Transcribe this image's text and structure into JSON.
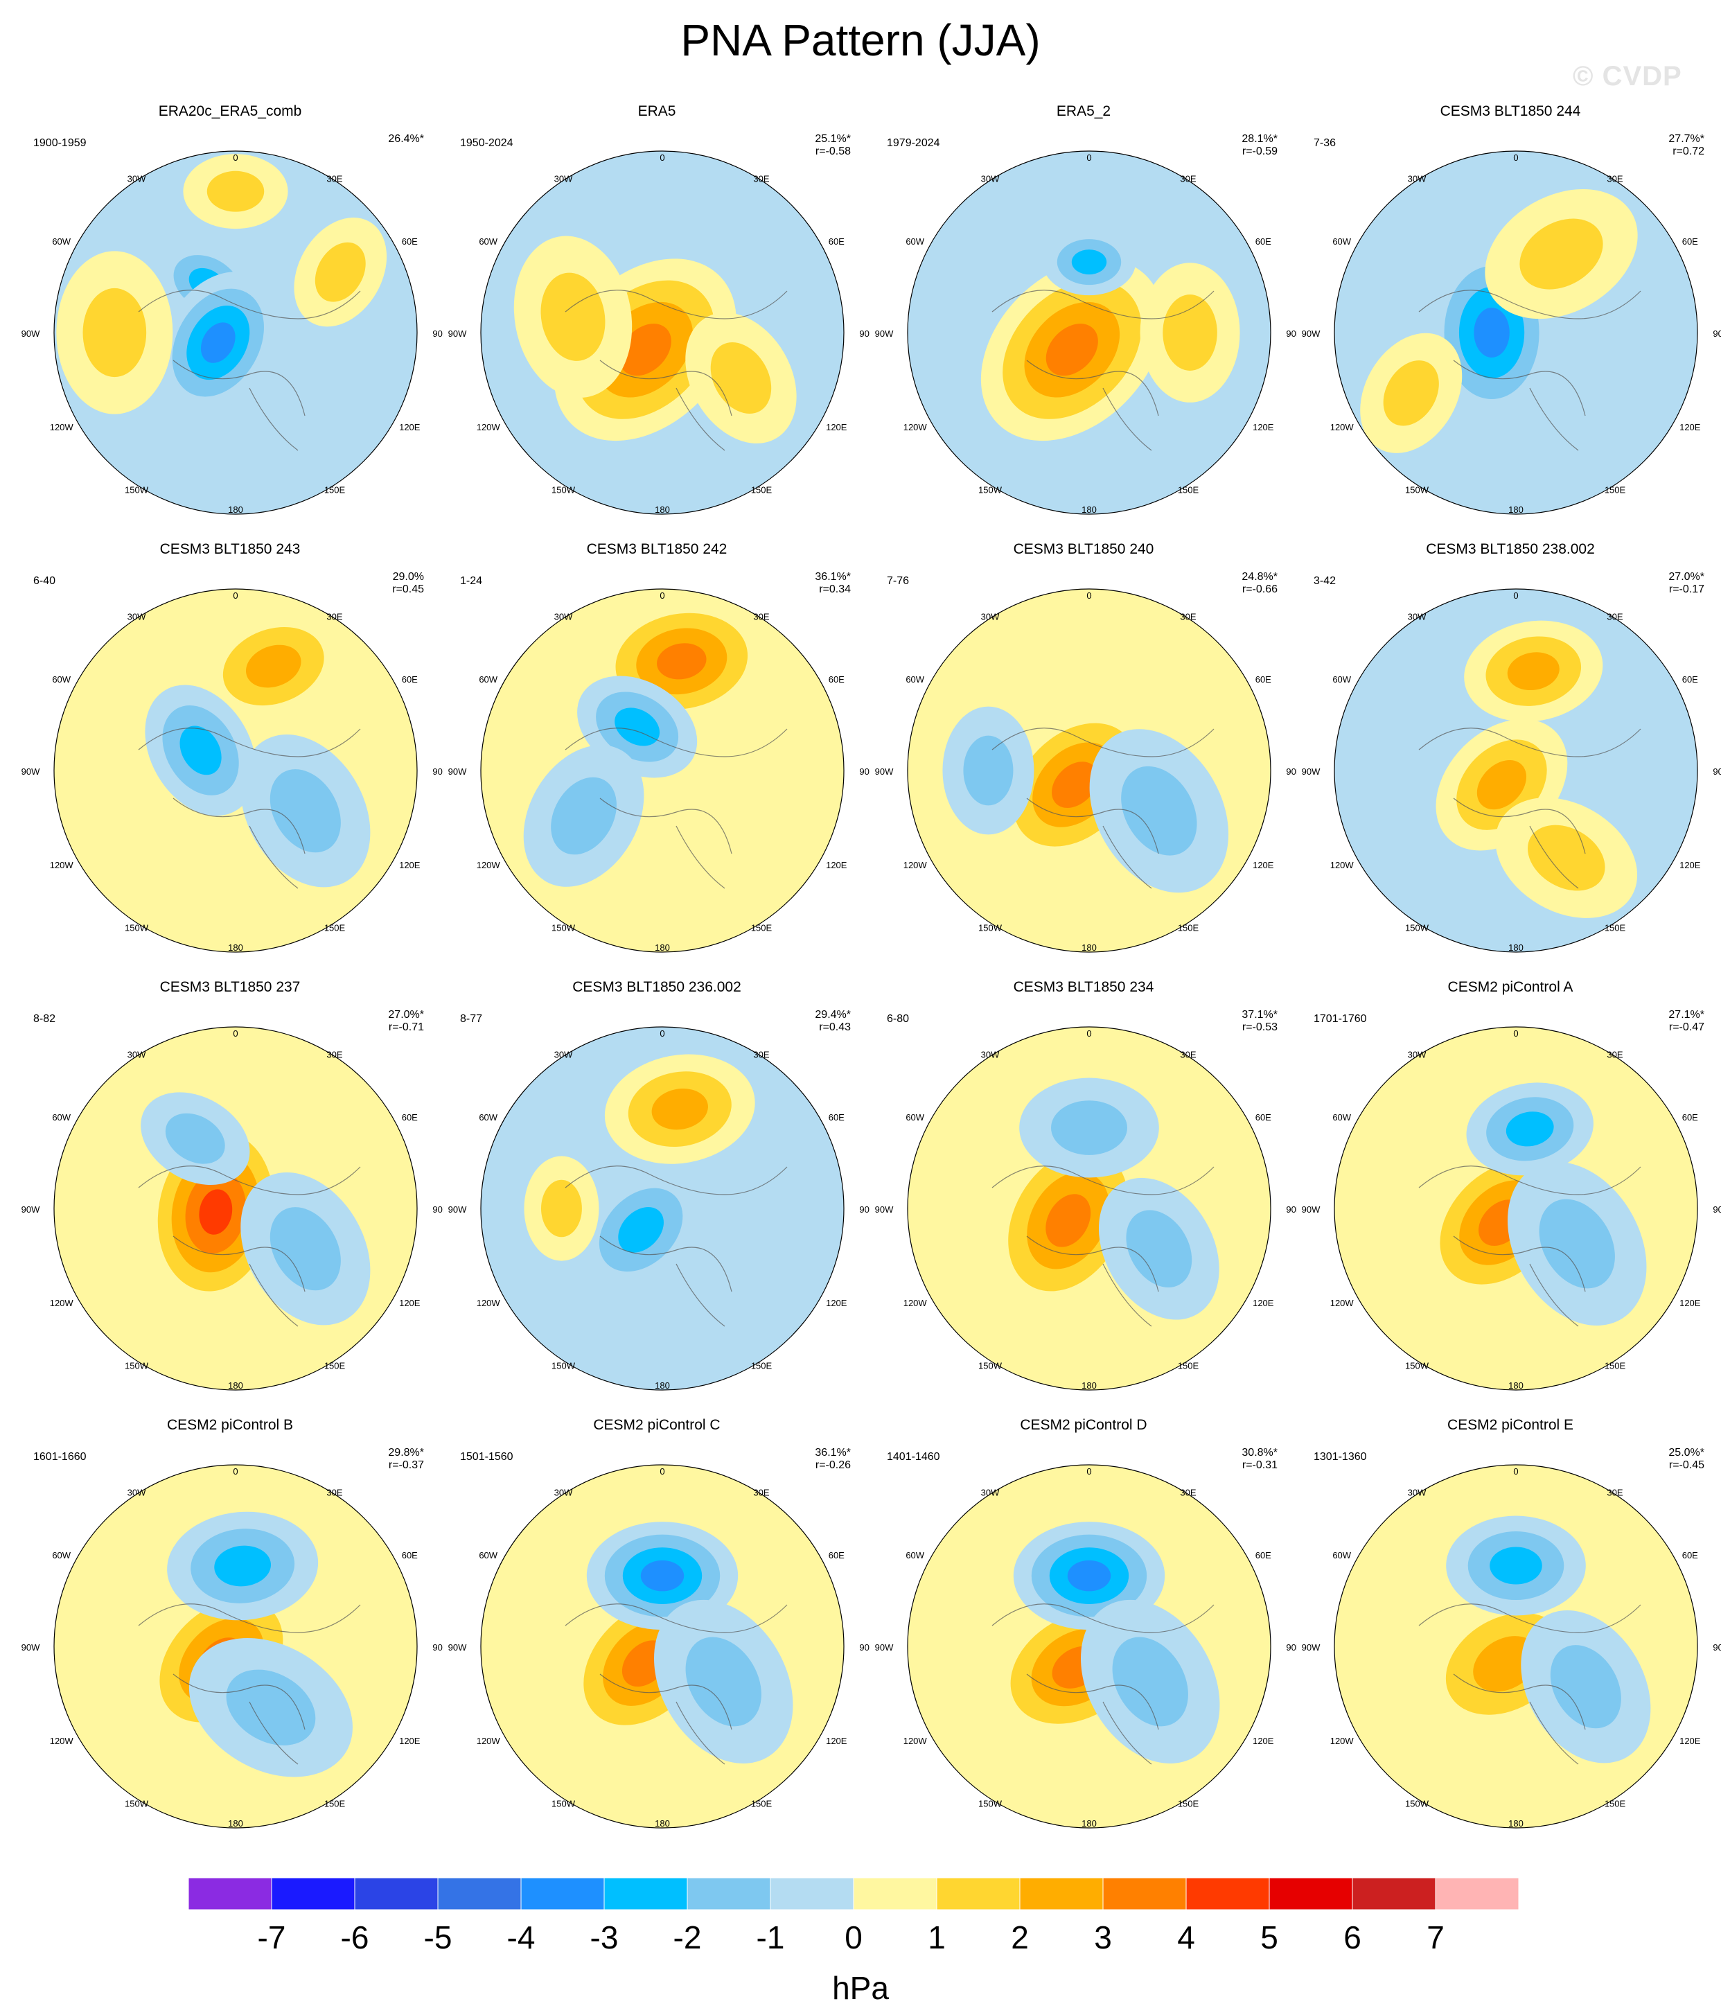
{
  "title": "PNA Pattern (JJA)",
  "watermark": "© CVDP",
  "units": "hPa",
  "colorbar": {
    "ticks": [
      "-7",
      "-6",
      "-5",
      "-4",
      "-3",
      "-2",
      "-1",
      "0",
      "1",
      "2",
      "3",
      "4",
      "5",
      "6",
      "7"
    ],
    "colors": [
      "#8b2be2",
      "#1a1aff",
      "#2b44e6",
      "#3473e6",
      "#1e90ff",
      "#00bfff",
      "#7ec8f0",
      "#b4dcf2",
      "#fff7a0",
      "#ffd630",
      "#ffad00",
      "#ff8000",
      "#ff3a00",
      "#e60000",
      "#cc2020",
      "#ffb4b4"
    ]
  },
  "map_labels": {
    "top": "180",
    "bottom": "0",
    "upper_left": "150W",
    "upper_right": "150E",
    "mid_upper_left": "120W",
    "mid_upper_right": "120E",
    "left": "90W",
    "right": "90E",
    "mid_lower_left": "60W",
    "mid_lower_right": "60E",
    "lower_left": "30W",
    "lower_right": "30E"
  },
  "chart_data": [
    {
      "type": "heatmap",
      "title": "ERA20c_ERA5_comb",
      "period": "1900-1959",
      "pct": "26.4%*",
      "corr": "",
      "background": "neg",
      "blobs": [
        {
          "lon": -150,
          "lat": 62,
          "v": -2,
          "size": 0.9
        },
        {
          "lon": -60,
          "lat": 80,
          "v": -3,
          "size": 1.3
        },
        {
          "lon": -90,
          "lat": 30,
          "v": 1,
          "size": 1.4
        },
        {
          "lon": 120,
          "lat": 30,
          "v": 1,
          "size": 1.0
        },
        {
          "lon": -180,
          "lat": 20,
          "v": 1,
          "size": 0.9
        }
      ]
    },
    {
      "type": "heatmap",
      "title": "ERA5",
      "period": "1950-2024",
      "pct": "25.1%*",
      "corr": "r=-0.58",
      "background": "neg",
      "blobs": [
        {
          "lon": -45,
          "lat": 78,
          "v": 3,
          "size": 1.8
        },
        {
          "lon": -100,
          "lat": 45,
          "v": 1,
          "size": 1.4
        },
        {
          "lon": 60,
          "lat": 45,
          "v": 1,
          "size": 1.2
        }
      ]
    },
    {
      "type": "heatmap",
      "title": "ERA5_2",
      "period": "1979-2024",
      "pct": "28.1%*",
      "corr": "r=-0.59",
      "background": "neg",
      "blobs": [
        {
          "lon": -45,
          "lat": 78,
          "v": 3,
          "size": 1.8
        },
        {
          "lon": -180,
          "lat": 55,
          "v": -2,
          "size": 0.8
        },
        {
          "lon": 90,
          "lat": 40,
          "v": 1,
          "size": 1.2
        }
      ]
    },
    {
      "type": "heatmap",
      "title": "CESM3 BLT1850 244",
      "period": "7-36",
      "pct": "27.7%*",
      "corr": "r=0.72",
      "background": "neg",
      "blobs": [
        {
          "lon": -90,
          "lat": 78,
          "v": -3,
          "size": 1.5
        },
        {
          "lon": 150,
          "lat": 45,
          "v": 1,
          "size": 1.4
        },
        {
          "lon": -60,
          "lat": 30,
          "v": 1,
          "size": 1.1
        }
      ]
    },
    {
      "type": "heatmap",
      "title": "CESM3 BLT1850 243",
      "period": "6-40",
      "pct": "29.0%",
      "corr": "r=0.45",
      "background": "pos",
      "blobs": [
        {
          "lon": 160,
          "lat": 35,
          "v": 2,
          "size": 1.3
        },
        {
          "lon": -120,
          "lat": 70,
          "v": -2,
          "size": 1.2
        },
        {
          "lon": 60,
          "lat": 50,
          "v": -1,
          "size": 1.4
        }
      ]
    },
    {
      "type": "heatmap",
      "title": "CESM3 BLT1850 242",
      "period": "1-24",
      "pct": "36.1%*",
      "corr": "r=0.34",
      "background": "pos",
      "blobs": [
        {
          "lon": 170,
          "lat": 35,
          "v": 3,
          "size": 1.5
        },
        {
          "lon": -150,
          "lat": 65,
          "v": -2,
          "size": 1.1
        },
        {
          "lon": -60,
          "lat": 45,
          "v": -1,
          "size": 1.3
        }
      ]
    },
    {
      "type": "heatmap",
      "title": "CESM3 BLT1850 240",
      "period": "7-76",
      "pct": "24.8%*",
      "corr": "r=-0.66",
      "background": "pos",
      "blobs": [
        {
          "lon": -45,
          "lat": 80,
          "v": 3,
          "size": 1.6
        },
        {
          "lon": 60,
          "lat": 50,
          "v": -1,
          "size": 1.5
        },
        {
          "lon": -90,
          "lat": 40,
          "v": -1,
          "size": 1.1
        }
      ]
    },
    {
      "type": "heatmap",
      "title": "CESM3 BLT1850 238.002",
      "period": "3-42",
      "pct": "27.0%*",
      "corr": "r=-0.17",
      "background": "neg",
      "blobs": [
        {
          "lon": 170,
          "lat": 40,
          "v": 2,
          "size": 1.2
        },
        {
          "lon": -45,
          "lat": 80,
          "v": 2,
          "size": 1.3
        },
        {
          "lon": 30,
          "lat": 40,
          "v": 1,
          "size": 1.3
        }
      ]
    },
    {
      "type": "heatmap",
      "title": "CESM3 BLT1850 237",
      "period": "8-82",
      "pct": "27.0%*",
      "corr": "r=-0.71",
      "background": "pos",
      "blobs": [
        {
          "lon": -80,
          "lat": 80,
          "v": 4,
          "size": 1.7
        },
        {
          "lon": 60,
          "lat": 50,
          "v": -1,
          "size": 1.4
        },
        {
          "lon": -150,
          "lat": 50,
          "v": -1,
          "size": 1.0
        }
      ]
    },
    {
      "type": "heatmap",
      "title": "CESM3 BLT1850 236.002",
      "period": "8-77",
      "pct": "29.4%*",
      "corr": "r=0.43",
      "background": "neg",
      "blobs": [
        {
          "lon": 170,
          "lat": 40,
          "v": 2,
          "size": 1.3
        },
        {
          "lon": -45,
          "lat": 75,
          "v": -2,
          "size": 1.2
        },
        {
          "lon": -90,
          "lat": 40,
          "v": 1,
          "size": 0.9
        }
      ]
    },
    {
      "type": "heatmap",
      "title": "CESM3 BLT1850 234",
      "period": "6-80",
      "pct": "37.1%*",
      "corr": "r=-0.53",
      "background": "pos",
      "blobs": [
        {
          "lon": -60,
          "lat": 78,
          "v": 3,
          "size": 1.7
        },
        {
          "lon": 180,
          "lat": 50,
          "v": -1,
          "size": 1.2
        },
        {
          "lon": 60,
          "lat": 50,
          "v": -1,
          "size": 1.3
        }
      ]
    },
    {
      "type": "heatmap",
      "title": "CESM2 piControl A",
      "period": "1701-1760",
      "pct": "27.1%*",
      "corr": "r=-0.47",
      "background": "pos",
      "blobs": [
        {
          "lon": -45,
          "lat": 80,
          "v": 3,
          "size": 1.6
        },
        {
          "lon": 170,
          "lat": 50,
          "v": -2,
          "size": 1.1
        },
        {
          "lon": 60,
          "lat": 55,
          "v": -1,
          "size": 1.5
        }
      ]
    },
    {
      "type": "heatmap",
      "title": "CESM2 piControl B",
      "period": "1601-1660",
      "pct": "29.8%*",
      "corr": "r=-0.37",
      "background": "pos",
      "blobs": [
        {
          "lon": -45,
          "lat": 80,
          "v": 3,
          "size": 1.6
        },
        {
          "lon": 175,
          "lat": 50,
          "v": -2,
          "size": 1.3
        },
        {
          "lon": 30,
          "lat": 55,
          "v": -1,
          "size": 1.5
        }
      ]
    },
    {
      "type": "heatmap",
      "title": "CESM2 piControl C",
      "period": "1501-1560",
      "pct": "36.1%*",
      "corr": "r=-0.26",
      "background": "pos",
      "blobs": [
        {
          "lon": -45,
          "lat": 78,
          "v": 3,
          "size": 1.6
        },
        {
          "lon": 180,
          "lat": 55,
          "v": -3,
          "size": 1.3
        },
        {
          "lon": 60,
          "lat": 55,
          "v": -1,
          "size": 1.5
        }
      ]
    },
    {
      "type": "heatmap",
      "title": "CESM2 piControl D",
      "period": "1401-1460",
      "pct": "30.8%*",
      "corr": "r=-0.31",
      "background": "pos",
      "blobs": [
        {
          "lon": -30,
          "lat": 78,
          "v": 3,
          "size": 1.6
        },
        {
          "lon": 180,
          "lat": 55,
          "v": -3,
          "size": 1.3
        },
        {
          "lon": 60,
          "lat": 55,
          "v": -1,
          "size": 1.5
        }
      ]
    },
    {
      "type": "heatmap",
      "title": "CESM2 piControl E",
      "period": "1301-1360",
      "pct": "25.0%*",
      "corr": "r=-0.45",
      "background": "pos",
      "blobs": [
        {
          "lon": -30,
          "lat": 80,
          "v": 2,
          "size": 1.6
        },
        {
          "lon": 180,
          "lat": 50,
          "v": -2,
          "size": 1.2
        },
        {
          "lon": 60,
          "lat": 50,
          "v": -1,
          "size": 1.4
        }
      ]
    }
  ]
}
